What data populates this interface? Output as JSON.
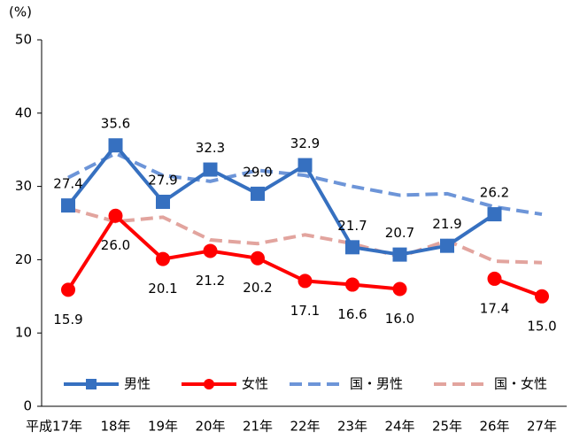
{
  "chart_data": {
    "type": "line",
    "y_unit_label": "(%)",
    "categories": [
      "平成17年",
      "18年",
      "19年",
      "20年",
      "21年",
      "22年",
      "23年",
      "24年",
      "25年",
      "26年",
      "27年"
    ],
    "ylim": [
      0,
      50
    ],
    "yticks": [
      0,
      10,
      20,
      30,
      40,
      50
    ],
    "series": [
      {
        "name": "男性",
        "color": "#3670c0",
        "marker": "square",
        "dash": false,
        "values": [
          27.4,
          35.6,
          27.9,
          32.3,
          29.0,
          32.9,
          21.7,
          20.7,
          21.9,
          26.2,
          null
        ],
        "value_labels": [
          "27.4",
          "35.6",
          "27.9",
          "32.3",
          "29.0",
          "32.9",
          "21.7",
          "20.7",
          "21.9",
          "26.2",
          null
        ]
      },
      {
        "name": "女性",
        "color": "#ff0000",
        "marker": "circle",
        "dash": false,
        "values": [
          15.9,
          26.0,
          20.1,
          21.2,
          20.2,
          17.1,
          16.6,
          16.0,
          null,
          17.4,
          15.0
        ],
        "value_labels": [
          "15.9",
          "26.0",
          "20.1",
          "21.2",
          "20.2",
          "17.1",
          "16.6",
          "16.0",
          null,
          "17.4",
          "15.0"
        ]
      },
      {
        "name": "国・男性",
        "color": "#6d95d8",
        "marker": "none",
        "dash": true,
        "values": [
          31.2,
          34.5,
          31.5,
          30.7,
          32.2,
          31.5,
          30.0,
          28.8,
          29.0,
          27.2,
          26.2
        ]
      },
      {
        "name": "国・女性",
        "color": "#e2a49e",
        "marker": "none",
        "dash": true,
        "values": [
          27.0,
          25.2,
          25.8,
          22.7,
          22.2,
          23.4,
          22.2,
          20.4,
          22.6,
          19.8,
          19.6
        ]
      }
    ]
  }
}
